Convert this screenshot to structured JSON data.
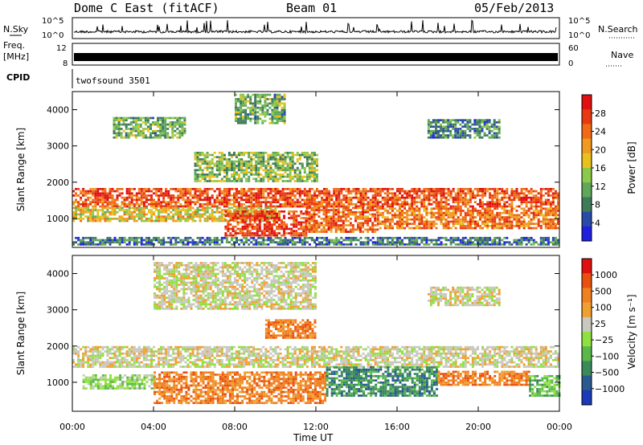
{
  "header": {
    "title": "Dome C East (fitACF)",
    "beam": "Beam 01",
    "date": "05/Feb/2013"
  },
  "aux_panels": {
    "nsky": {
      "label": "N.Sky",
      "tick_top": "10^5",
      "tick_bottom": "10^0"
    },
    "nsearch": {
      "label": "N.Search",
      "tick_top": "10^5",
      "tick_bottom": "10^0"
    },
    "freq": {
      "label_line1": "Freq.",
      "label_line2": "[MHz]",
      "tick_top": "12",
      "tick_bottom": "8"
    },
    "nave": {
      "label": "Nave",
      "tick_top": "60",
      "tick_bottom": "0"
    },
    "cpid": {
      "label": "CPID",
      "program": "twofsound 3501"
    }
  },
  "chart_data": [
    {
      "type": "heatmap",
      "name": "power",
      "ylabel": "Slant Range [km]",
      "yticks": [
        "1000",
        "2000",
        "3000",
        "4000"
      ],
      "ylim": [
        200,
        4500
      ],
      "xlim": [
        0,
        24
      ],
      "colorbar": {
        "label": "Power [dB]",
        "ticks": [
          "4",
          "8",
          "12",
          "16",
          "20",
          "24",
          "28"
        ],
        "colors": [
          "#1f1fe0",
          "#2a4aa8",
          "#3f7a5a",
          "#5fa85a",
          "#8cc84a",
          "#e8c020",
          "#f09a20",
          "#f06a18",
          "#e83a10",
          "#e01010"
        ]
      },
      "bands": [
        {
          "t": [
            0.0,
            24.0
          ],
          "r": [
            1300,
            1800
          ],
          "level": 0.85
        },
        {
          "t": [
            0.0,
            10.0
          ],
          "r": [
            900,
            1300
          ],
          "level": 0.55
        },
        {
          "t": [
            7.5,
            11.5
          ],
          "r": [
            500,
            1200
          ],
          "level": 0.9
        },
        {
          "t": [
            11.5,
            15.0
          ],
          "r": [
            600,
            1300
          ],
          "level": 0.8
        },
        {
          "t": [
            15.0,
            24.0
          ],
          "r": [
            700,
            1300
          ],
          "level": 0.75
        },
        {
          "t": [
            6.0,
            12.0
          ],
          "r": [
            2000,
            2800
          ],
          "level": 0.4
        },
        {
          "t": [
            2.0,
            5.5
          ],
          "r": [
            3200,
            3800
          ],
          "level": 0.35
        },
        {
          "t": [
            8.0,
            10.5
          ],
          "r": [
            3600,
            4400
          ],
          "level": 0.35
        },
        {
          "t": [
            17.5,
            21.0
          ],
          "r": [
            3200,
            3700
          ],
          "level": 0.25
        },
        {
          "t": [
            0.0,
            24.0
          ],
          "r": [
            250,
            450
          ],
          "level": 0.2
        }
      ]
    },
    {
      "type": "heatmap",
      "name": "velocity",
      "ylabel": "Slant Range [km]",
      "yticks": [
        "1000",
        "2000",
        "3000",
        "4000"
      ],
      "ylim": [
        200,
        4500
      ],
      "xlim": [
        0,
        24
      ],
      "xlabel": "Time UT",
      "xticks": [
        "00:00",
        "04:00",
        "08:00",
        "12:00",
        "16:00",
        "20:00",
        "00:00"
      ],
      "colorbar": {
        "label": "Velocity [m s⁻¹]",
        "ticks": [
          "1000",
          "500",
          "100",
          "25",
          "−25",
          "−100",
          "−500",
          "−1000"
        ],
        "colors": [
          "#1a3ab8",
          "#2a5a90",
          "#3a8a5a",
          "#5ab84a",
          "#90e040",
          "#c8c8c0",
          "#f0a030",
          "#f08020",
          "#e85010",
          "#e01010"
        ]
      },
      "bands": [
        {
          "t": [
            0.0,
            24.0
          ],
          "r": [
            1400,
            2000
          ],
          "class": 5
        },
        {
          "t": [
            0.5,
            4.0
          ],
          "r": [
            800,
            1200
          ],
          "class": 4
        },
        {
          "t": [
            4.0,
            12.5
          ],
          "r": [
            400,
            1300
          ],
          "class": 7
        },
        {
          "t": [
            9.5,
            12.0
          ],
          "r": [
            2200,
            2700
          ],
          "class": 7
        },
        {
          "t": [
            12.5,
            18.0
          ],
          "r": [
            600,
            1400
          ],
          "class": 2
        },
        {
          "t": [
            18.0,
            22.5
          ],
          "r": [
            900,
            1300
          ],
          "class": 7
        },
        {
          "t": [
            22.5,
            24.0
          ],
          "r": [
            600,
            1200
          ],
          "class": 3
        },
        {
          "t": [
            4.0,
            12.0
          ],
          "r": [
            3000,
            4300
          ],
          "class": 5
        },
        {
          "t": [
            17.5,
            21.0
          ],
          "r": [
            3100,
            3600
          ],
          "class": 5
        }
      ]
    }
  ]
}
